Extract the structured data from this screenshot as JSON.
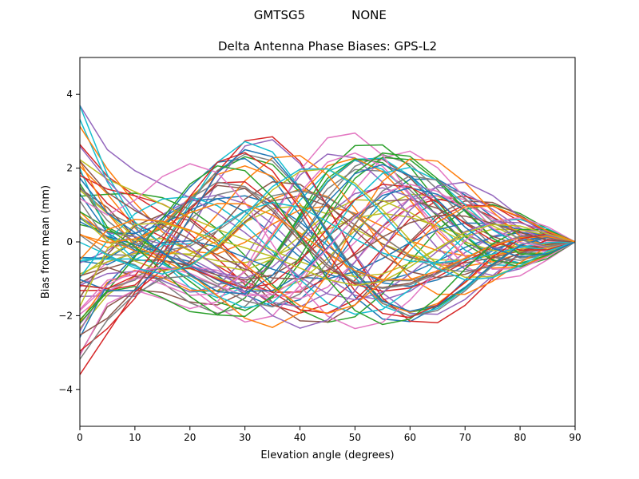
{
  "chart_data": {
    "type": "line",
    "suptitle_left": "GMTSG5",
    "suptitle_right": "NONE",
    "title": "Delta Antenna Phase Biases: GPS-L2",
    "xlabel": "Elevation angle (degrees)",
    "ylabel": "Bias from mean (mm)",
    "xlim": [
      0,
      90
    ],
    "ylim": [
      -5,
      5
    ],
    "xticks": [
      0,
      10,
      20,
      30,
      40,
      50,
      60,
      70,
      80,
      90
    ],
    "xtick_labels": [
      "0",
      "10",
      "20",
      "30",
      "40",
      "50",
      "60",
      "70",
      "80",
      "90"
    ],
    "yticks": [
      -4,
      -2,
      0,
      2,
      4
    ],
    "ytick_labels": [
      "−4",
      "−2",
      "0",
      "2",
      "4"
    ],
    "grid": false,
    "legend": "none",
    "x": [
      0,
      5,
      10,
      15,
      20,
      25,
      30,
      35,
      40,
      45,
      50,
      55,
      60,
      65,
      70,
      75,
      80,
      85,
      90
    ],
    "series_count": 72,
    "series_generation": {
      "low_amplitude": [
        -2.0,
        2.0
      ],
      "start_amplitude_range": [
        -3.6,
        3.8
      ],
      "mid_amplitude_range": [
        -3.1,
        3.1
      ],
      "high_amplitude_range": [
        -2.0,
        1.05
      ],
      "converges_to": 0
    },
    "series": [],
    "colors": [
      "#1f77b4",
      "#ff7f0e",
      "#2ca02c",
      "#d62728",
      "#9467bd",
      "#8c564b",
      "#e377c2",
      "#7f7f7f",
      "#bcbd22",
      "#17becf"
    ]
  }
}
